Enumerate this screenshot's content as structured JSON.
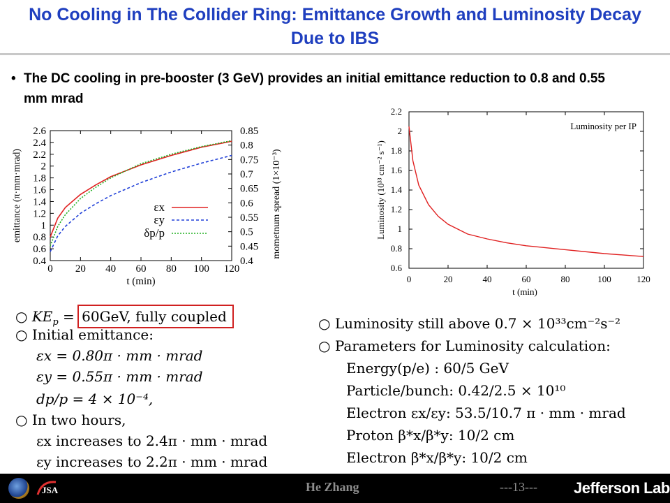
{
  "slide": {
    "title": "No Cooling in The Collider Ring: Emittance Growth and Luminosity Decay Due to IBS",
    "bullet": "The DC cooling in pre-booster (3 GeV) provides an initial emittance reduction to 0.8 and 0.55 mm mrad"
  },
  "left_math": {
    "line1_a": "KE",
    "line1_b": "p",
    "line1_c": " = ",
    "line1_boxed": "60GeV, fully coupled",
    "line2": "Initial emittance:",
    "line3": "εx = 0.80π · mm · mrad",
    "line4": "εy = 0.55π · mm · mrad",
    "line5": "dp/p = 4 × 10⁻⁴,",
    "line6": "In two hours,",
    "line7": "εx increases to 2.4π · mm · mrad",
    "line8": "εy increases to 2.2π · mm · mrad"
  },
  "right_math": {
    "line1": "Luminosity still above 0.7 × 10³³cm⁻²s⁻²",
    "line2": "Parameters for Luminosity calculation:",
    "line3": "Energy(p/e) : 60/5 GeV",
    "line4": "Particle/bunch:  0.42/2.5 × 10¹⁰",
    "line5": "Electron εx/εy:  53.5/10.7 π · mm · mrad",
    "line6": "Proton β*x/β*y:  10/2 cm",
    "line7": "Electron β*x/β*y:  10/2 cm"
  },
  "footer": {
    "author": "He Zhang",
    "page": "---13---",
    "brand": "Jefferson Lab"
  },
  "colors": {
    "title": "#1f3fbf",
    "eps_x": "#e02020",
    "eps_y": "#1f3fd8",
    "dp_p": "#22b022",
    "lumi": "#e02020"
  },
  "chart_data": [
    {
      "type": "line",
      "xlabel": "t (min)",
      "ylabel": "emittance (π·mm·mrad)",
      "y2label": "mometnum spread (1×10⁻³)",
      "xlim": [
        0,
        120
      ],
      "ylim": [
        0.4,
        2.6
      ],
      "y2lim": [
        0.4,
        0.85
      ],
      "xticks": [
        0,
        20,
        40,
        60,
        80,
        100,
        120
      ],
      "yticks": [
        0.4,
        0.6,
        0.8,
        1,
        1.2,
        1.4,
        1.6,
        1.8,
        2,
        2.2,
        2.4,
        2.6
      ],
      "y2ticks": [
        0.4,
        0.45,
        0.5,
        0.55,
        0.6,
        0.65,
        0.7,
        0.75,
        0.8,
        0.85
      ],
      "legend_position": "right-center",
      "series": [
        {
          "name": "εx",
          "axis": "left",
          "x": [
            0,
            5,
            10,
            20,
            30,
            40,
            60,
            80,
            100,
            120
          ],
          "y": [
            0.8,
            1.12,
            1.3,
            1.52,
            1.68,
            1.82,
            2.02,
            2.18,
            2.32,
            2.42
          ]
        },
        {
          "name": "εy",
          "axis": "left",
          "x": [
            0,
            5,
            10,
            20,
            30,
            40,
            60,
            80,
            100,
            120
          ],
          "y": [
            0.55,
            0.82,
            0.98,
            1.2,
            1.36,
            1.5,
            1.72,
            1.9,
            2.05,
            2.18
          ]
        },
        {
          "name": "δp/p",
          "axis": "left",
          "x": [
            0,
            5,
            10,
            20,
            30,
            40,
            60,
            80,
            100,
            120
          ],
          "y": [
            0.65,
            0.98,
            1.18,
            1.45,
            1.64,
            1.8,
            2.04,
            2.2,
            2.33,
            2.43
          ]
        }
      ]
    },
    {
      "type": "line",
      "title": "Luminosity per IP",
      "xlabel": "t (min)",
      "ylabel": "Luminosity (10³³ cm⁻² s⁻¹)",
      "xlim": [
        0,
        120
      ],
      "ylim": [
        0.6,
        2.2
      ],
      "xticks": [
        0,
        20,
        40,
        60,
        80,
        100,
        120
      ],
      "yticks": [
        0.6,
        0.8,
        1,
        1.2,
        1.4,
        1.6,
        1.8,
        2,
        2.2
      ],
      "series": [
        {
          "name": "Luminosity per IP",
          "x": [
            0,
            2,
            5,
            10,
            15,
            20,
            30,
            40,
            50,
            60,
            80,
            100,
            120
          ],
          "y": [
            2.05,
            1.7,
            1.45,
            1.25,
            1.13,
            1.05,
            0.95,
            0.9,
            0.86,
            0.83,
            0.79,
            0.75,
            0.72
          ]
        }
      ]
    }
  ]
}
